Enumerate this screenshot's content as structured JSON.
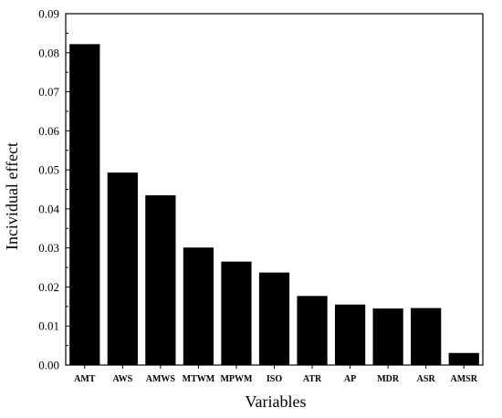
{
  "chart_data": {
    "type": "bar",
    "xlabel": "Variables",
    "ylabel": "Incividual effect",
    "ylim": [
      0,
      0.09
    ],
    "yticks": [
      "0.00",
      "0.01",
      "0.02",
      "0.03",
      "0.04",
      "0.05",
      "0.06",
      "0.07",
      "0.08",
      "0.09"
    ],
    "categories": [
      "AMT",
      "AWS",
      "AMWS",
      "MTWM",
      "MPWM",
      "ISO",
      "ATR",
      "AP",
      "MDR",
      "ASR",
      "AMSR"
    ],
    "values": [
      0.0822,
      0.0493,
      0.0435,
      0.0301,
      0.0265,
      0.0237,
      0.0177,
      0.0155,
      0.0145,
      0.0146,
      0.0031
    ],
    "bar_color": "#000000",
    "grid": false,
    "legend": "none"
  }
}
